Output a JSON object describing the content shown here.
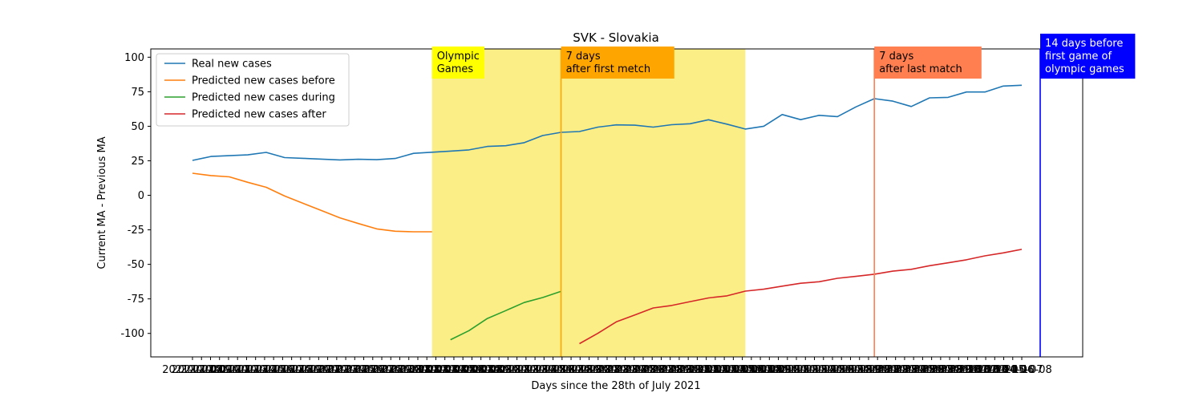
{
  "chart_data": {
    "type": "line",
    "title": "SVK - Slovakia",
    "xlabel": "Days since the 28th of July 2021",
    "ylabel": "Current MA - Previous MA",
    "ylim": [
      -117,
      106
    ],
    "yticks": [
      100,
      75,
      50,
      25,
      0,
      -25,
      -50,
      -75,
      -100
    ],
    "x_tick_labels": [
      "2021-07-08",
      "2021-07-09",
      "2021-07-10",
      "2021-07-11",
      "2021-07-12",
      "2021-07-13",
      "2021-07-14",
      "2021-07-15",
      "2021-07-16",
      "2021-07-17",
      "2021-07-18",
      "2021-07-19",
      "2021-07-20",
      "2021-07-21",
      "2021-07-22",
      "2021-07-23",
      "2021-07-24",
      "2021-07-25",
      "2021-07-26",
      "2021-07-27",
      "2021-07-28",
      "2021-07-29",
      "2021-07-30",
      "2021-07-31",
      "2021-08-01",
      "2021-08-02",
      "2021-08-03",
      "2021-08-04",
      "2021-08-05",
      "2021-08-06",
      "2021-08-07",
      "2021-08-08",
      "2021-08-09",
      "2021-08-10",
      "2021-08-11",
      "2021-08-12",
      "2021-08-13",
      "2021-08-14",
      "2021-08-15",
      "2021-08-16",
      "2021-08-17",
      "2021-08-18",
      "2021-08-19",
      "2021-08-20",
      "2021-08-21",
      "2021-08-22",
      "2021-08-23",
      "2021-08-24",
      "2021-08-25",
      "2021-08-26",
      "2021-08-27",
      "2021-08-28",
      "2021-08-29",
      "2021-08-30",
      "2021-08-31",
      "2021-09-01",
      "2021-09-02",
      "2021-09-03",
      "2021-09-04",
      "2021-09-05",
      "2021-09-06",
      "2021-09-07",
      "2021-09-08",
      "2021-09-09",
      "2021-09-10",
      "2021-09-11",
      "2021-09-12",
      "2021-09-13",
      "2021-09-14",
      "2021-09-15",
      "2021-09-16",
      "2021-09-17",
      "2021-09-18",
      "2021-09-19",
      "2021-09-20",
      "2021-09-21",
      "2021-09-22",
      "2021-09-23",
      "2021-09-24",
      "2021-09-25",
      "2021-09-26",
      "2021-09-27",
      "2021-09-28",
      "2021-09-29",
      "2021-09-30",
      "2021-10-01",
      "2021-10-02",
      "2021-10-03",
      "2021-10-04",
      "2021-10-05",
      "2021-10-06",
      "2021-10-07",
      "2021-10-08"
    ],
    "series": [
      {
        "name": "Real new cases",
        "color": "#1f77b4",
        "points": [
          [
            0,
            25.3
          ],
          [
            1,
            28.1
          ],
          [
            2,
            28.7
          ],
          [
            3,
            29.3
          ],
          [
            4,
            31.1
          ],
          [
            5,
            27.3
          ],
          [
            6,
            26.8
          ],
          [
            7,
            26.2
          ],
          [
            8,
            25.6
          ],
          [
            9,
            26.1
          ],
          [
            10,
            25.8
          ],
          [
            11,
            26.7
          ],
          [
            12,
            30.4
          ],
          [
            13,
            31.2
          ],
          [
            14,
            32.0
          ],
          [
            15,
            32.9
          ],
          [
            16,
            35.4
          ],
          [
            17,
            35.9
          ],
          [
            18,
            38.1
          ],
          [
            19,
            43.3
          ],
          [
            20,
            45.6
          ],
          [
            21,
            46.2
          ],
          [
            22,
            49.4
          ],
          [
            23,
            51.0
          ],
          [
            24,
            50.8
          ],
          [
            25,
            49.4
          ],
          [
            26,
            51.1
          ],
          [
            27,
            51.8
          ],
          [
            28,
            54.7
          ],
          [
            29,
            51.5
          ],
          [
            30,
            48.0
          ],
          [
            31,
            50.0
          ],
          [
            32,
            58.5
          ],
          [
            33,
            54.8
          ],
          [
            34,
            57.9
          ],
          [
            35,
            57.0
          ],
          [
            36,
            64.0
          ],
          [
            37,
            70.0
          ],
          [
            38,
            68.2
          ],
          [
            39,
            64.3
          ],
          [
            40,
            70.6
          ],
          [
            41,
            70.9
          ],
          [
            42,
            74.8
          ],
          [
            43,
            74.8
          ],
          [
            44,
            79.1
          ],
          [
            45,
            79.7
          ]
        ]
      },
      {
        "name": "Predicted new cases before",
        "color": "#ff7f0e",
        "points": [
          [
            0,
            16.0
          ],
          [
            1,
            14.3
          ],
          [
            2,
            13.4
          ],
          [
            3,
            9.4
          ],
          [
            4,
            5.8
          ],
          [
            5,
            -0.5
          ],
          [
            6,
            -5.8
          ],
          [
            7,
            -11.0
          ],
          [
            8,
            -16.3
          ],
          [
            9,
            -20.4
          ],
          [
            10,
            -24.3
          ],
          [
            11,
            -26.0
          ],
          [
            12,
            -26.4
          ],
          [
            13,
            -26.4
          ]
        ]
      },
      {
        "name": "Predicted new cases during",
        "color": "#2ca02c",
        "points": [
          [
            14,
            -104.6
          ],
          [
            15,
            -98.0
          ],
          [
            16,
            -89.2
          ],
          [
            17,
            -83.5
          ],
          [
            18,
            -77.6
          ],
          [
            19,
            -74.0
          ],
          [
            20,
            -69.5
          ]
        ]
      },
      {
        "name": "Predicted new cases after",
        "color": "#d62728",
        "points": [
          [
            21,
            -107.4
          ],
          [
            22,
            -99.9
          ],
          [
            23,
            -91.6
          ],
          [
            24,
            -86.7
          ],
          [
            25,
            -81.6
          ],
          [
            26,
            -79.8
          ],
          [
            27,
            -77.0
          ],
          [
            28,
            -74.3
          ],
          [
            29,
            -72.8
          ],
          [
            30,
            -69.4
          ],
          [
            31,
            -68.0
          ],
          [
            32,
            -65.8
          ],
          [
            33,
            -63.7
          ],
          [
            34,
            -62.6
          ],
          [
            35,
            -60.1
          ],
          [
            36,
            -58.7
          ],
          [
            37,
            -57.1
          ],
          [
            38,
            -54.9
          ],
          [
            39,
            -53.6
          ],
          [
            40,
            -51.0
          ],
          [
            41,
            -48.9
          ],
          [
            42,
            -46.7
          ],
          [
            43,
            -43.8
          ],
          [
            44,
            -41.7
          ],
          [
            45,
            -39.1
          ]
        ]
      }
    ],
    "shaded_region": {
      "x": [
        13,
        30
      ],
      "color": "#fcee87"
    },
    "vlines": [
      {
        "x": 20,
        "color": "#ffa500"
      },
      {
        "x": 37,
        "color": "#ff7f50"
      },
      {
        "x": 46,
        "color": "#0000ff"
      }
    ],
    "annotations": [
      {
        "lines": [
          "Olympic",
          "Games"
        ],
        "x": 13,
        "bg": "#ffff00",
        "fg": "#000000"
      },
      {
        "lines": [
          "7 days",
          "after first metch"
        ],
        "x": 20,
        "bg": "#ffa500",
        "fg": "#000000"
      },
      {
        "lines": [
          "7 days",
          "after last match"
        ],
        "x": 37,
        "bg": "#ff7f50",
        "fg": "#000000"
      },
      {
        "lines": [
          "14 days before",
          "first game of",
          "olympic games"
        ],
        "x": 46,
        "bg": "#0000ff",
        "fg": "#ffffff"
      }
    ],
    "legend": {
      "placement": "upper-left"
    }
  }
}
